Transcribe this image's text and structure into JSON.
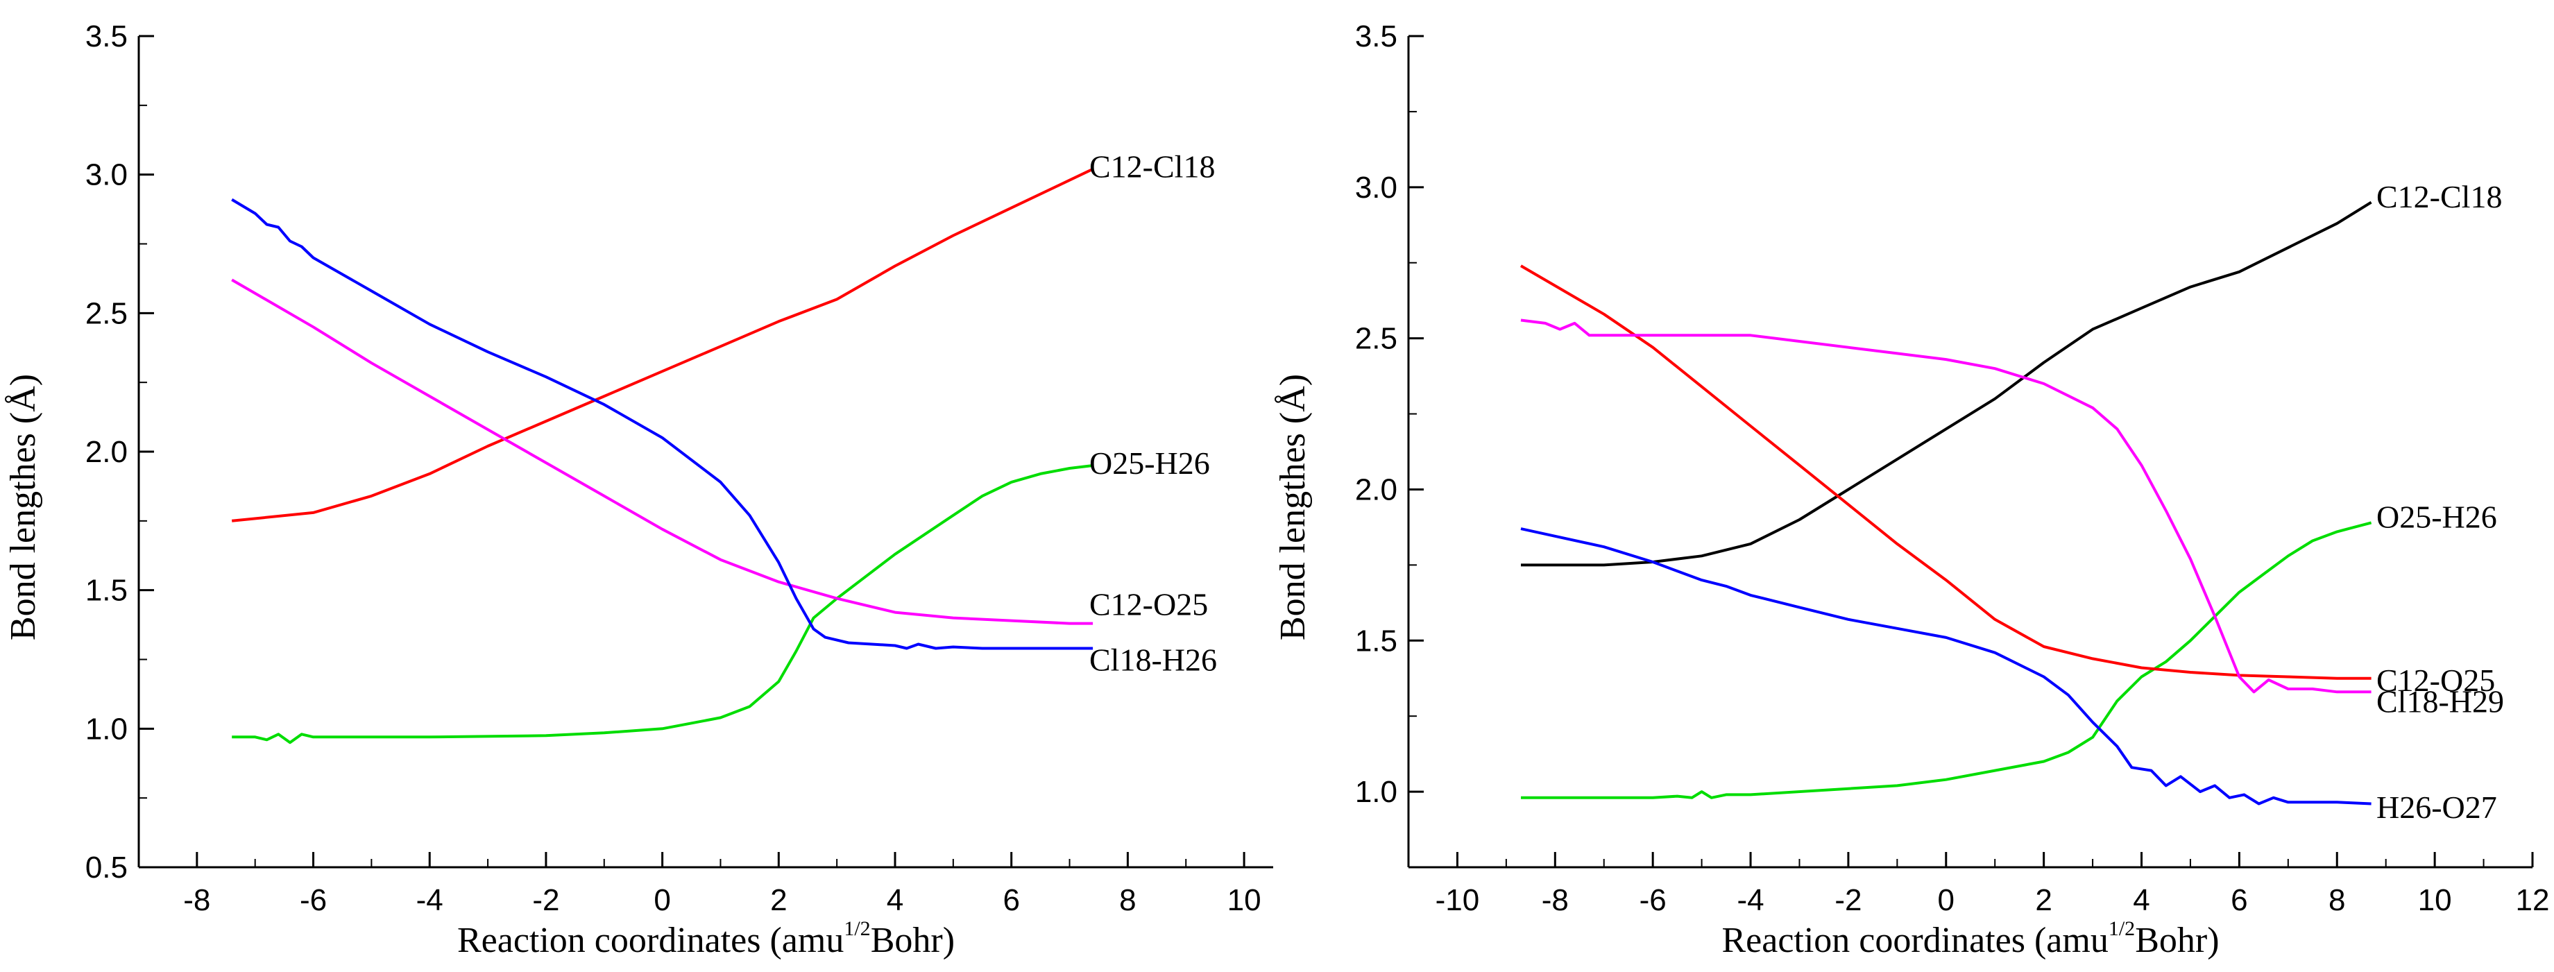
{
  "chart_data": [
    {
      "type": "line",
      "xlabel_prefix": "Reaction coordinates (amu",
      "xlabel_sup": "1/2",
      "xlabel_suffix": "Bohr)",
      "ylabel": "Bond lengthes (Å)",
      "xlim": [
        -9,
        10.5
      ],
      "ylim": [
        0.5,
        3.5
      ],
      "xticks": [
        -8,
        -6,
        -4,
        -2,
        0,
        2,
        4,
        6,
        8,
        10
      ],
      "yticks": [
        0.5,
        1.0,
        1.5,
        2.0,
        2.5,
        3.0,
        3.5
      ],
      "ytick_labels": [
        "0.5",
        "1.0",
        "1.5",
        "2.0",
        "2.5",
        "3.0",
        "3.5"
      ],
      "series": [
        {
          "name": "C12-Cl18",
          "color": "#ff0000",
          "label_value": 3.03,
          "x": [
            -7.4,
            -6,
            -5,
            -4,
            -3,
            -2,
            -1,
            0,
            1,
            2,
            3,
            4,
            5,
            6,
            7,
            7.4
          ],
          "y": [
            1.75,
            1.78,
            1.84,
            1.92,
            2.02,
            2.11,
            2.2,
            2.29,
            2.38,
            2.47,
            2.55,
            2.67,
            2.78,
            2.88,
            2.98,
            3.02
          ]
        },
        {
          "name": "O25-H26",
          "color": "#00dd00",
          "label_value": 1.96,
          "x": [
            -7.4,
            -7,
            -6.8,
            -6.6,
            -6.4,
            -6.2,
            -6,
            -4,
            -2,
            -1,
            0,
            1,
            1.5,
            2,
            2.3,
            2.6,
            3,
            3.5,
            4,
            4.5,
            5,
            5.5,
            6,
            6.5,
            7,
            7.4
          ],
          "y": [
            0.97,
            0.97,
            0.96,
            0.98,
            0.95,
            0.98,
            0.97,
            0.97,
            0.975,
            0.985,
            1.0,
            1.04,
            1.08,
            1.17,
            1.28,
            1.4,
            1.47,
            1.55,
            1.63,
            1.7,
            1.77,
            1.84,
            1.89,
            1.92,
            1.94,
            1.95
          ]
        },
        {
          "name": "C12-O25",
          "color": "#ff00ff",
          "label_value": 1.45,
          "x": [
            -7.4,
            -6,
            -5,
            -4,
            -3,
            -2,
            -1,
            0,
            1,
            2,
            3,
            4,
            5,
            6,
            7,
            7.4
          ],
          "y": [
            2.62,
            2.45,
            2.32,
            2.2,
            2.08,
            1.96,
            1.84,
            1.72,
            1.61,
            1.53,
            1.47,
            1.42,
            1.4,
            1.39,
            1.38,
            1.38
          ]
        },
        {
          "name": "Cl18-H26",
          "color": "#0000ff",
          "label_value": 1.25,
          "x": [
            -7.4,
            -7,
            -6.8,
            -6.6,
            -6.4,
            -6.2,
            -6,
            -5,
            -4,
            -3,
            -2,
            -1,
            0,
            1,
            1.5,
            2,
            2.3,
            2.6,
            2.8,
            3.2,
            3.6,
            4,
            4.2,
            4.4,
            4.7,
            5,
            5.5,
            6,
            7,
            7.4
          ],
          "y": [
            2.91,
            2.86,
            2.82,
            2.81,
            2.76,
            2.74,
            2.7,
            2.58,
            2.46,
            2.36,
            2.27,
            2.17,
            2.05,
            1.89,
            1.77,
            1.6,
            1.47,
            1.36,
            1.33,
            1.31,
            1.305,
            1.3,
            1.29,
            1.305,
            1.29,
            1.295,
            1.29,
            1.29,
            1.29,
            1.29
          ]
        }
      ]
    },
    {
      "type": "line",
      "xlabel_prefix": "Reaction coordinates (amu",
      "xlabel_sup": "1/2",
      "xlabel_suffix": "Bohr)",
      "ylabel": "Bond lengthes (Å)",
      "xlim": [
        -11,
        12
      ],
      "ylim": [
        0.75,
        3.5
      ],
      "xticks": [
        -10,
        -8,
        -6,
        -4,
        -2,
        0,
        2,
        4,
        6,
        8,
        10,
        12
      ],
      "yticks": [
        1.0,
        1.5,
        2.0,
        2.5,
        3.0,
        3.5
      ],
      "ytick_labels": [
        "1.0",
        "1.5",
        "2.0",
        "2.5",
        "3.0",
        "3.5"
      ],
      "series": [
        {
          "name": "C12-Cl18",
          "color": "#000000",
          "label_value": 2.97,
          "x": [
            -8.7,
            -7,
            -6,
            -5,
            -4,
            -3,
            -2,
            -1,
            0,
            1,
            2,
            3,
            4,
            5,
            6,
            7,
            8,
            8.7
          ],
          "y": [
            1.75,
            1.75,
            1.76,
            1.78,
            1.82,
            1.9,
            2.0,
            2.1,
            2.2,
            2.3,
            2.42,
            2.53,
            2.6,
            2.67,
            2.72,
            2.8,
            2.88,
            2.95
          ]
        },
        {
          "name": "O25-H26",
          "color": "#00dd00",
          "label_value": 1.91,
          "x": [
            -8.7,
            -7,
            -6,
            -5.5,
            -5.2,
            -5,
            -4.8,
            -4.5,
            -4,
            -2,
            -1,
            0,
            1,
            2,
            2.5,
            3,
            3.5,
            4,
            4.5,
            5,
            5.5,
            6,
            6.5,
            7,
            7.5,
            8,
            8.7
          ],
          "y": [
            0.98,
            0.98,
            0.98,
            0.985,
            0.98,
            1.0,
            0.98,
            0.99,
            0.99,
            1.01,
            1.02,
            1.04,
            1.07,
            1.1,
            1.13,
            1.18,
            1.3,
            1.38,
            1.43,
            1.5,
            1.58,
            1.66,
            1.72,
            1.78,
            1.83,
            1.86,
            1.89
          ]
        },
        {
          "name": "C12-O25",
          "color": "#ff0000",
          "label_value": 1.37,
          "x": [
            -8.7,
            -7,
            -6,
            -5,
            -4,
            -3,
            -2,
            -1,
            0,
            1,
            2,
            3,
            4,
            5,
            6,
            7,
            8,
            8.7
          ],
          "y": [
            2.74,
            2.58,
            2.47,
            2.34,
            2.21,
            2.08,
            1.95,
            1.82,
            1.7,
            1.57,
            1.48,
            1.44,
            1.41,
            1.395,
            1.385,
            1.38,
            1.375,
            1.375
          ]
        },
        {
          "name": "Cl18-H29",
          "color": "#ff00ff",
          "label_value": 1.3,
          "x": [
            -8.7,
            -8.2,
            -7.9,
            -7.6,
            -7.3,
            -7,
            -6,
            -5,
            -4,
            -3,
            -2,
            -1,
            0,
            1,
            2,
            3,
            3.5,
            4,
            4.5,
            5,
            5.5,
            6,
            6.3,
            6.6,
            7,
            7.5,
            8,
            8.7
          ],
          "y": [
            2.56,
            2.55,
            2.53,
            2.55,
            2.51,
            2.51,
            2.51,
            2.51,
            2.51,
            2.49,
            2.47,
            2.45,
            2.43,
            2.4,
            2.35,
            2.27,
            2.2,
            2.08,
            1.93,
            1.77,
            1.58,
            1.38,
            1.33,
            1.37,
            1.34,
            1.34,
            1.33,
            1.33
          ]
        },
        {
          "name": "H26-O27",
          "color": "#0000ff",
          "label_value": 0.95,
          "x": [
            -8.7,
            -7,
            -6,
            -5.5,
            -5,
            -4.5,
            -4,
            -3,
            -2,
            -1,
            0,
            1,
            2,
            2.5,
            3,
            3.5,
            3.8,
            4.2,
            4.5,
            4.8,
            5.2,
            5.5,
            5.8,
            6.1,
            6.4,
            6.7,
            7,
            8,
            8.7
          ],
          "y": [
            1.87,
            1.81,
            1.76,
            1.73,
            1.7,
            1.68,
            1.65,
            1.61,
            1.57,
            1.54,
            1.51,
            1.46,
            1.38,
            1.32,
            1.23,
            1.15,
            1.08,
            1.07,
            1.02,
            1.05,
            1.0,
            1.02,
            0.98,
            0.99,
            0.96,
            0.98,
            0.965,
            0.965,
            0.96
          ]
        }
      ]
    }
  ]
}
